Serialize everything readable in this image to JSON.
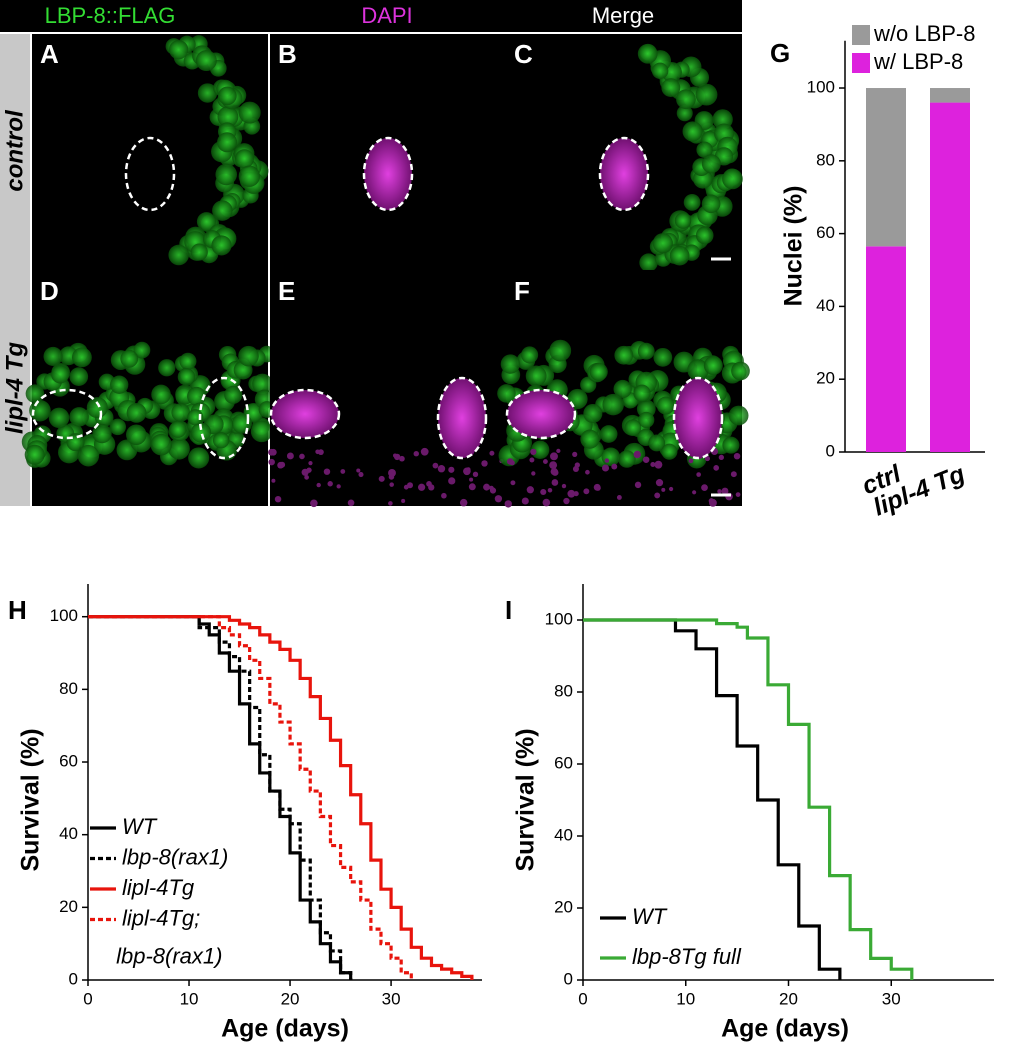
{
  "figure": {
    "column_headers": [
      "LBP-8::FLAG",
      "DAPI",
      "Merge"
    ],
    "row_labels": [
      "control",
      "lipl-4 Tg"
    ],
    "panel_letters": [
      "A",
      "B",
      "C",
      "D",
      "E",
      "F"
    ]
  },
  "chart_data": [
    {
      "type": "bar",
      "stacked": true,
      "panel": "G",
      "ylabel": "Nuclei (%)",
      "categories": [
        "ctrl",
        "lipl-4 Tg"
      ],
      "series": [
        {
          "name": "w/ LBP-8",
          "color": "#dd22dd",
          "values": [
            56.5,
            96
          ]
        },
        {
          "name": "w/o LBP-8",
          "color": "#9a9a9a",
          "values": [
            43.5,
            4
          ]
        }
      ],
      "ylim": [
        0,
        113
      ],
      "yticks": [
        0,
        20,
        40,
        60,
        80,
        100
      ],
      "legend": "top-right"
    },
    {
      "type": "step",
      "panel": "H",
      "xlabel": "Age (days)",
      "ylabel": "Survival (%)",
      "xlim": [
        0,
        39
      ],
      "xticks": [
        0,
        10,
        20,
        30
      ],
      "ylim": [
        0,
        109
      ],
      "yticks": [
        0,
        20,
        40,
        60,
        80,
        100
      ],
      "legend": "bottom-left",
      "series": [
        {
          "name": "WT",
          "color": "#000000",
          "dash": false,
          "x": [
            0,
            11,
            12,
            13,
            14,
            15,
            16,
            17,
            18,
            19,
            20,
            21,
            22,
            23,
            24,
            25,
            26
          ],
          "values": [
            100,
            98,
            95,
            90,
            85,
            76,
            65,
            57,
            52,
            45,
            35,
            22,
            16,
            10,
            5,
            2,
            0
          ]
        },
        {
          "name": "lbp-8(rax1)",
          "color": "#000000",
          "dash": true,
          "x": [
            0,
            11,
            13,
            14,
            15,
            16,
            17,
            18,
            19,
            20,
            21,
            22,
            23,
            24,
            25,
            26
          ],
          "values": [
            100,
            97,
            93,
            89,
            85,
            75,
            62,
            52,
            47,
            43,
            33,
            22,
            13,
            8,
            2,
            0
          ]
        },
        {
          "name": "lipl-4Tg",
          "color": "#e8140c",
          "dash": false,
          "x": [
            0,
            14,
            15,
            16,
            17,
            18,
            19,
            20,
            21,
            22,
            23,
            24,
            25,
            26,
            27,
            28,
            29,
            30,
            31,
            32,
            33,
            34,
            35,
            36,
            37,
            38
          ],
          "values": [
            100,
            99,
            98,
            97,
            95,
            93,
            91,
            88,
            83,
            78,
            72,
            66,
            59,
            51,
            43,
            33,
            25,
            20,
            14,
            9,
            6,
            4,
            3,
            2,
            1,
            0
          ]
        },
        {
          "name": "lipl-4Tg; lbp-8(rax1)",
          "color": "#e8140c",
          "dash": true,
          "x": [
            0,
            13,
            14,
            15,
            16,
            17,
            18,
            19,
            20,
            21,
            22,
            23,
            24,
            25,
            26,
            27,
            28,
            29,
            30,
            31,
            32
          ],
          "values": [
            100,
            97,
            95,
            92,
            88,
            83,
            76,
            71,
            65,
            58,
            52,
            45,
            37,
            31,
            27,
            22,
            14,
            10,
            6,
            2,
            0
          ]
        }
      ]
    },
    {
      "type": "step",
      "panel": "I",
      "xlabel": "Age (days)",
      "ylabel": "Survival (%)",
      "xlim": [
        0,
        40
      ],
      "xticks": [
        0,
        10,
        20,
        30
      ],
      "ylim": [
        0,
        110
      ],
      "yticks": [
        0,
        20,
        40,
        60,
        80,
        100
      ],
      "legend": "bottom-left",
      "series": [
        {
          "name": "WT",
          "color": "#000000",
          "dash": false,
          "x": [
            0,
            9,
            11,
            13,
            15,
            17,
            19,
            21,
            23,
            25
          ],
          "values": [
            100,
            97,
            92,
            79,
            65,
            50,
            32,
            15,
            3,
            0
          ]
        },
        {
          "name": "lbp-8Tg full",
          "color": "#3aaa35",
          "dash": false,
          "x": [
            0,
            13,
            15,
            16,
            18,
            20,
            22,
            24,
            26,
            28,
            30,
            32
          ],
          "values": [
            100,
            99,
            98,
            95,
            82,
            71,
            48,
            29,
            14,
            6,
            3,
            0
          ]
        }
      ]
    }
  ]
}
